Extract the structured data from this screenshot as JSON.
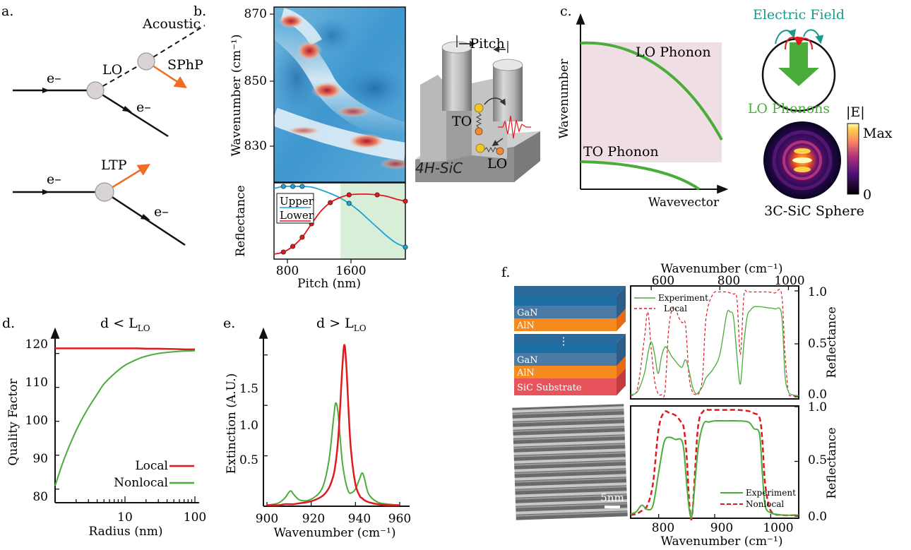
{
  "panels": {
    "a": {
      "label": "a.",
      "top": {
        "e_in": "e–",
        "e_out": "e–",
        "lo": "LO",
        "acoustic": "Acoustic",
        "sphp": "SPhP"
      },
      "bottom": {
        "e_in": "e–",
        "e_out": "e–",
        "ltp": "LTP"
      }
    },
    "b": {
      "label": "b.",
      "heatmap": {
        "ylabel": "Wavenumber (cm⁻¹)",
        "yticks": [
          "870",
          "850",
          "830"
        ]
      },
      "reflectance": {
        "ylabel": "Reflectance",
        "xlabel": "Pitch (nm)",
        "xticks": [
          "800",
          "1600"
        ],
        "legend_upper": "Upper",
        "legend_lower": "Lower"
      },
      "schematic": {
        "pitch": "Pitch",
        "to": "TO",
        "lo": "LO",
        "material": "4H-SiC"
      }
    },
    "c": {
      "label": "c.",
      "ylabel": "Wavenumber",
      "xlabel": "Wavevector",
      "lo_phonon": "LO Phonon",
      "to_phonon": "TO Phonon",
      "electric_field": "Electric Field",
      "lo_phonons": "LO Phonons",
      "colorbar_title": "|E|",
      "colorbar_max": "Max",
      "colorbar_min": "0",
      "sphere": "3C-SiC Sphere"
    },
    "d": {
      "label": "d.",
      "title_main": "d < L",
      "title_sub": "LO",
      "ylabel": "Quality Factor",
      "xlabel": "Radius (nm)",
      "yticks": [
        "120",
        "110",
        "100",
        "90",
        "80"
      ],
      "xticks": [
        "10",
        "100"
      ],
      "legend_local": "Local",
      "legend_nonlocal": "Nonlocal"
    },
    "e": {
      "label": "e.",
      "title_main": "d > L",
      "title_sub": "LO",
      "ylabel": "Extinction (A.U.)",
      "xlabel": "Wavenumber (cm⁻¹)",
      "yticks": [
        "1.5",
        "1.0",
        "0.5"
      ],
      "xticks": [
        "900",
        "920",
        "940",
        "960"
      ]
    },
    "f": {
      "label": "f.",
      "layers": {
        "gan": "GaN",
        "aln": "AlN",
        "dots": "⋮",
        "substrate": "SiC Substrate"
      },
      "scalebar": "5nm",
      "top_xlabel": "Wavenumber (cm⁻¹)",
      "top_xticks": [
        "600",
        "800",
        "1000"
      ],
      "right_ylabel": "Reflectance",
      "right_yticks_top": [
        "1.0",
        "0.5",
        "0.0"
      ],
      "right_yticks_bottom": [
        "1.0",
        "0.5",
        "0.0"
      ],
      "bottom_xlabel": "Wavenumber (cm⁻¹)",
      "bottom_xticks": [
        "800",
        "900",
        "1000"
      ],
      "legend_exp_top": "Experiment",
      "legend_local": "Local",
      "legend_exp_bottom": "Experiment",
      "legend_nonlocal": "Nonlocal"
    }
  },
  "colors": {
    "green": "#4aac3a",
    "red": "#e1191e",
    "orange": "#f26b21",
    "cyan": "#1ea3d6",
    "teal": "#1a9a8c",
    "pink_bg": "#efdfe4",
    "green_bg": "#d9eed8"
  },
  "chart_data": [
    {
      "type": "line",
      "panel": "b-reflectance",
      "xlabel": "Pitch (nm)",
      "ylabel": "Reflectance",
      "x": [
        700,
        800,
        900,
        1000,
        1100,
        1200,
        1300,
        1400,
        1500,
        1600,
        1700,
        1800,
        1900,
        2000,
        2100
      ],
      "series": [
        {
          "name": "Upper",
          "values": [
            0.95,
            0.98,
            0.98,
            0.98,
            0.97,
            0.93,
            0.88,
            0.82,
            0.74,
            0.64,
            0.52,
            0.4,
            0.28,
            0.18,
            0.12
          ]
        },
        {
          "name": "Lower",
          "values": [
            0.02,
            0.05,
            0.13,
            0.26,
            0.45,
            0.63,
            0.75,
            0.82,
            0.86,
            0.87,
            0.87,
            0.86,
            0.84,
            0.8,
            0.77
          ]
        }
      ],
      "shaded_region_x": [
        1400,
        2100
      ]
    },
    {
      "type": "line",
      "panel": "d",
      "xlabel": "Radius (nm)",
      "ylabel": "Quality Factor",
      "xscale": "log",
      "ylim": [
        76,
        127
      ],
      "x": [
        1,
        1.3,
        1.7,
        2.2,
        3,
        4,
        5,
        7,
        10,
        15,
        20,
        30,
        50,
        70,
        100
      ],
      "series": [
        {
          "name": "Local",
          "values": [
            121.5,
            121.5,
            121.5,
            121.5,
            121.5,
            121.5,
            121.5,
            121.5,
            121.5,
            121.5,
            121.4,
            121.4,
            121.3,
            121.2,
            121.2
          ]
        },
        {
          "name": "Nonlocal",
          "values": [
            81,
            88,
            94,
            99,
            104,
            108,
            111,
            114,
            116.5,
            118.3,
            119.2,
            120,
            120.5,
            120.7,
            120.8
          ]
        }
      ]
    },
    {
      "type": "line",
      "panel": "e",
      "xlabel": "Wavenumber (cm⁻¹)",
      "ylabel": "Extinction (A.U.)",
      "xlim": [
        900,
        960
      ],
      "ylim": [
        0,
        1.75
      ],
      "x": [
        900,
        905,
        908,
        910,
        911,
        912,
        915,
        920,
        925,
        928,
        930,
        931,
        932,
        933,
        934,
        935,
        936,
        937,
        938,
        940,
        942,
        943,
        944,
        946,
        950,
        955,
        960
      ],
      "series": [
        {
          "name": "red",
          "values": [
            0.01,
            0.01,
            0.02,
            0.02,
            0.02,
            0.02,
            0.03,
            0.05,
            0.1,
            0.18,
            0.3,
            0.42,
            0.62,
            0.95,
            1.35,
            1.6,
            1.35,
            0.9,
            0.55,
            0.22,
            0.1,
            0.08,
            0.06,
            0.04,
            0.02,
            0.01,
            0.01
          ]
        },
        {
          "name": "green",
          "values": [
            0.01,
            0.03,
            0.08,
            0.14,
            0.15,
            0.12,
            0.06,
            0.07,
            0.18,
            0.45,
            0.85,
            1.02,
            0.95,
            0.7,
            0.45,
            0.3,
            0.2,
            0.14,
            0.13,
            0.17,
            0.28,
            0.33,
            0.28,
            0.12,
            0.04,
            0.02,
            0.01
          ]
        }
      ]
    },
    {
      "type": "line",
      "panel": "f-top",
      "xlabel": "Wavenumber (cm⁻¹)",
      "ylabel": "Reflectance",
      "xlim": [
        540,
        1030
      ],
      "ylim": [
        -0.02,
        1.02
      ],
      "x": [
        540,
        560,
        580,
        590,
        600,
        610,
        620,
        630,
        640,
        650,
        660,
        670,
        680,
        690,
        700,
        710,
        720,
        730,
        740,
        750,
        760,
        780,
        800,
        820,
        830,
        840,
        850,
        860,
        870,
        880,
        890,
        900,
        920,
        940,
        960,
        980,
        990,
        1000,
        1010,
        1030
      ],
      "series": [
        {
          "name": "Experiment",
          "values": [
            0.02,
            0.05,
            0.22,
            0.4,
            0.52,
            0.4,
            0.22,
            0.38,
            0.47,
            0.44,
            0.38,
            0.34,
            0.3,
            0.28,
            0.35,
            0.25,
            0.1,
            0.03,
            0.05,
            0.1,
            0.18,
            0.26,
            0.4,
            0.78,
            0.8,
            0.75,
            0.38,
            0.12,
            0.5,
            0.76,
            0.82,
            0.85,
            0.85,
            0.84,
            0.83,
            0.78,
            0.2,
            0.05,
            0.02,
            0.01
          ]
        },
        {
          "name": "Local",
          "values": [
            0.01,
            0.08,
            0.55,
            0.8,
            0.45,
            0.15,
            0.03,
            0.02,
            0.05,
            0.6,
            0.82,
            0.84,
            0.75,
            0.7,
            0.68,
            0.2,
            0.05,
            0.02,
            0.04,
            0.2,
            0.75,
            0.97,
            0.99,
            0.99,
            0.98,
            0.97,
            0.92,
            0.4,
            0.95,
            0.99,
            0.99,
            0.99,
            0.99,
            0.99,
            0.98,
            0.97,
            0.4,
            0.05,
            0.01,
            0.01
          ]
        }
      ]
    },
    {
      "type": "line",
      "panel": "f-bottom",
      "xlabel": "Wavenumber (cm⁻¹)",
      "ylabel": "Reflectance",
      "xlim": [
        750,
        1050
      ],
      "ylim": [
        -0.02,
        1.02
      ],
      "x": [
        750,
        760,
        770,
        780,
        790,
        800,
        810,
        820,
        830,
        840,
        845,
        850,
        855,
        860,
        870,
        880,
        890,
        900,
        920,
        940,
        960,
        970,
        980,
        985,
        990,
        1000,
        1020,
        1050
      ],
      "series": [
        {
          "name": "Experiment",
          "values": [
            0.02,
            0.04,
            0.1,
            0.06,
            0.1,
            0.4,
            0.68,
            0.72,
            0.7,
            0.7,
            0.6,
            0.3,
            0.05,
            0.03,
            0.6,
            0.84,
            0.86,
            0.87,
            0.87,
            0.87,
            0.86,
            0.8,
            0.75,
            0.4,
            0.1,
            0.03,
            0.01,
            0.01
          ]
        },
        {
          "name": "Nonlocal",
          "values": [
            0.01,
            0.02,
            0.05,
            0.1,
            0.3,
            0.8,
            0.95,
            0.94,
            0.92,
            0.86,
            0.8,
            0.55,
            0.1,
            0.02,
            0.8,
            0.96,
            0.97,
            0.97,
            0.97,
            0.97,
            0.96,
            0.94,
            0.9,
            0.7,
            0.3,
            0.05,
            0.01,
            0.01
          ]
        }
      ]
    }
  ]
}
